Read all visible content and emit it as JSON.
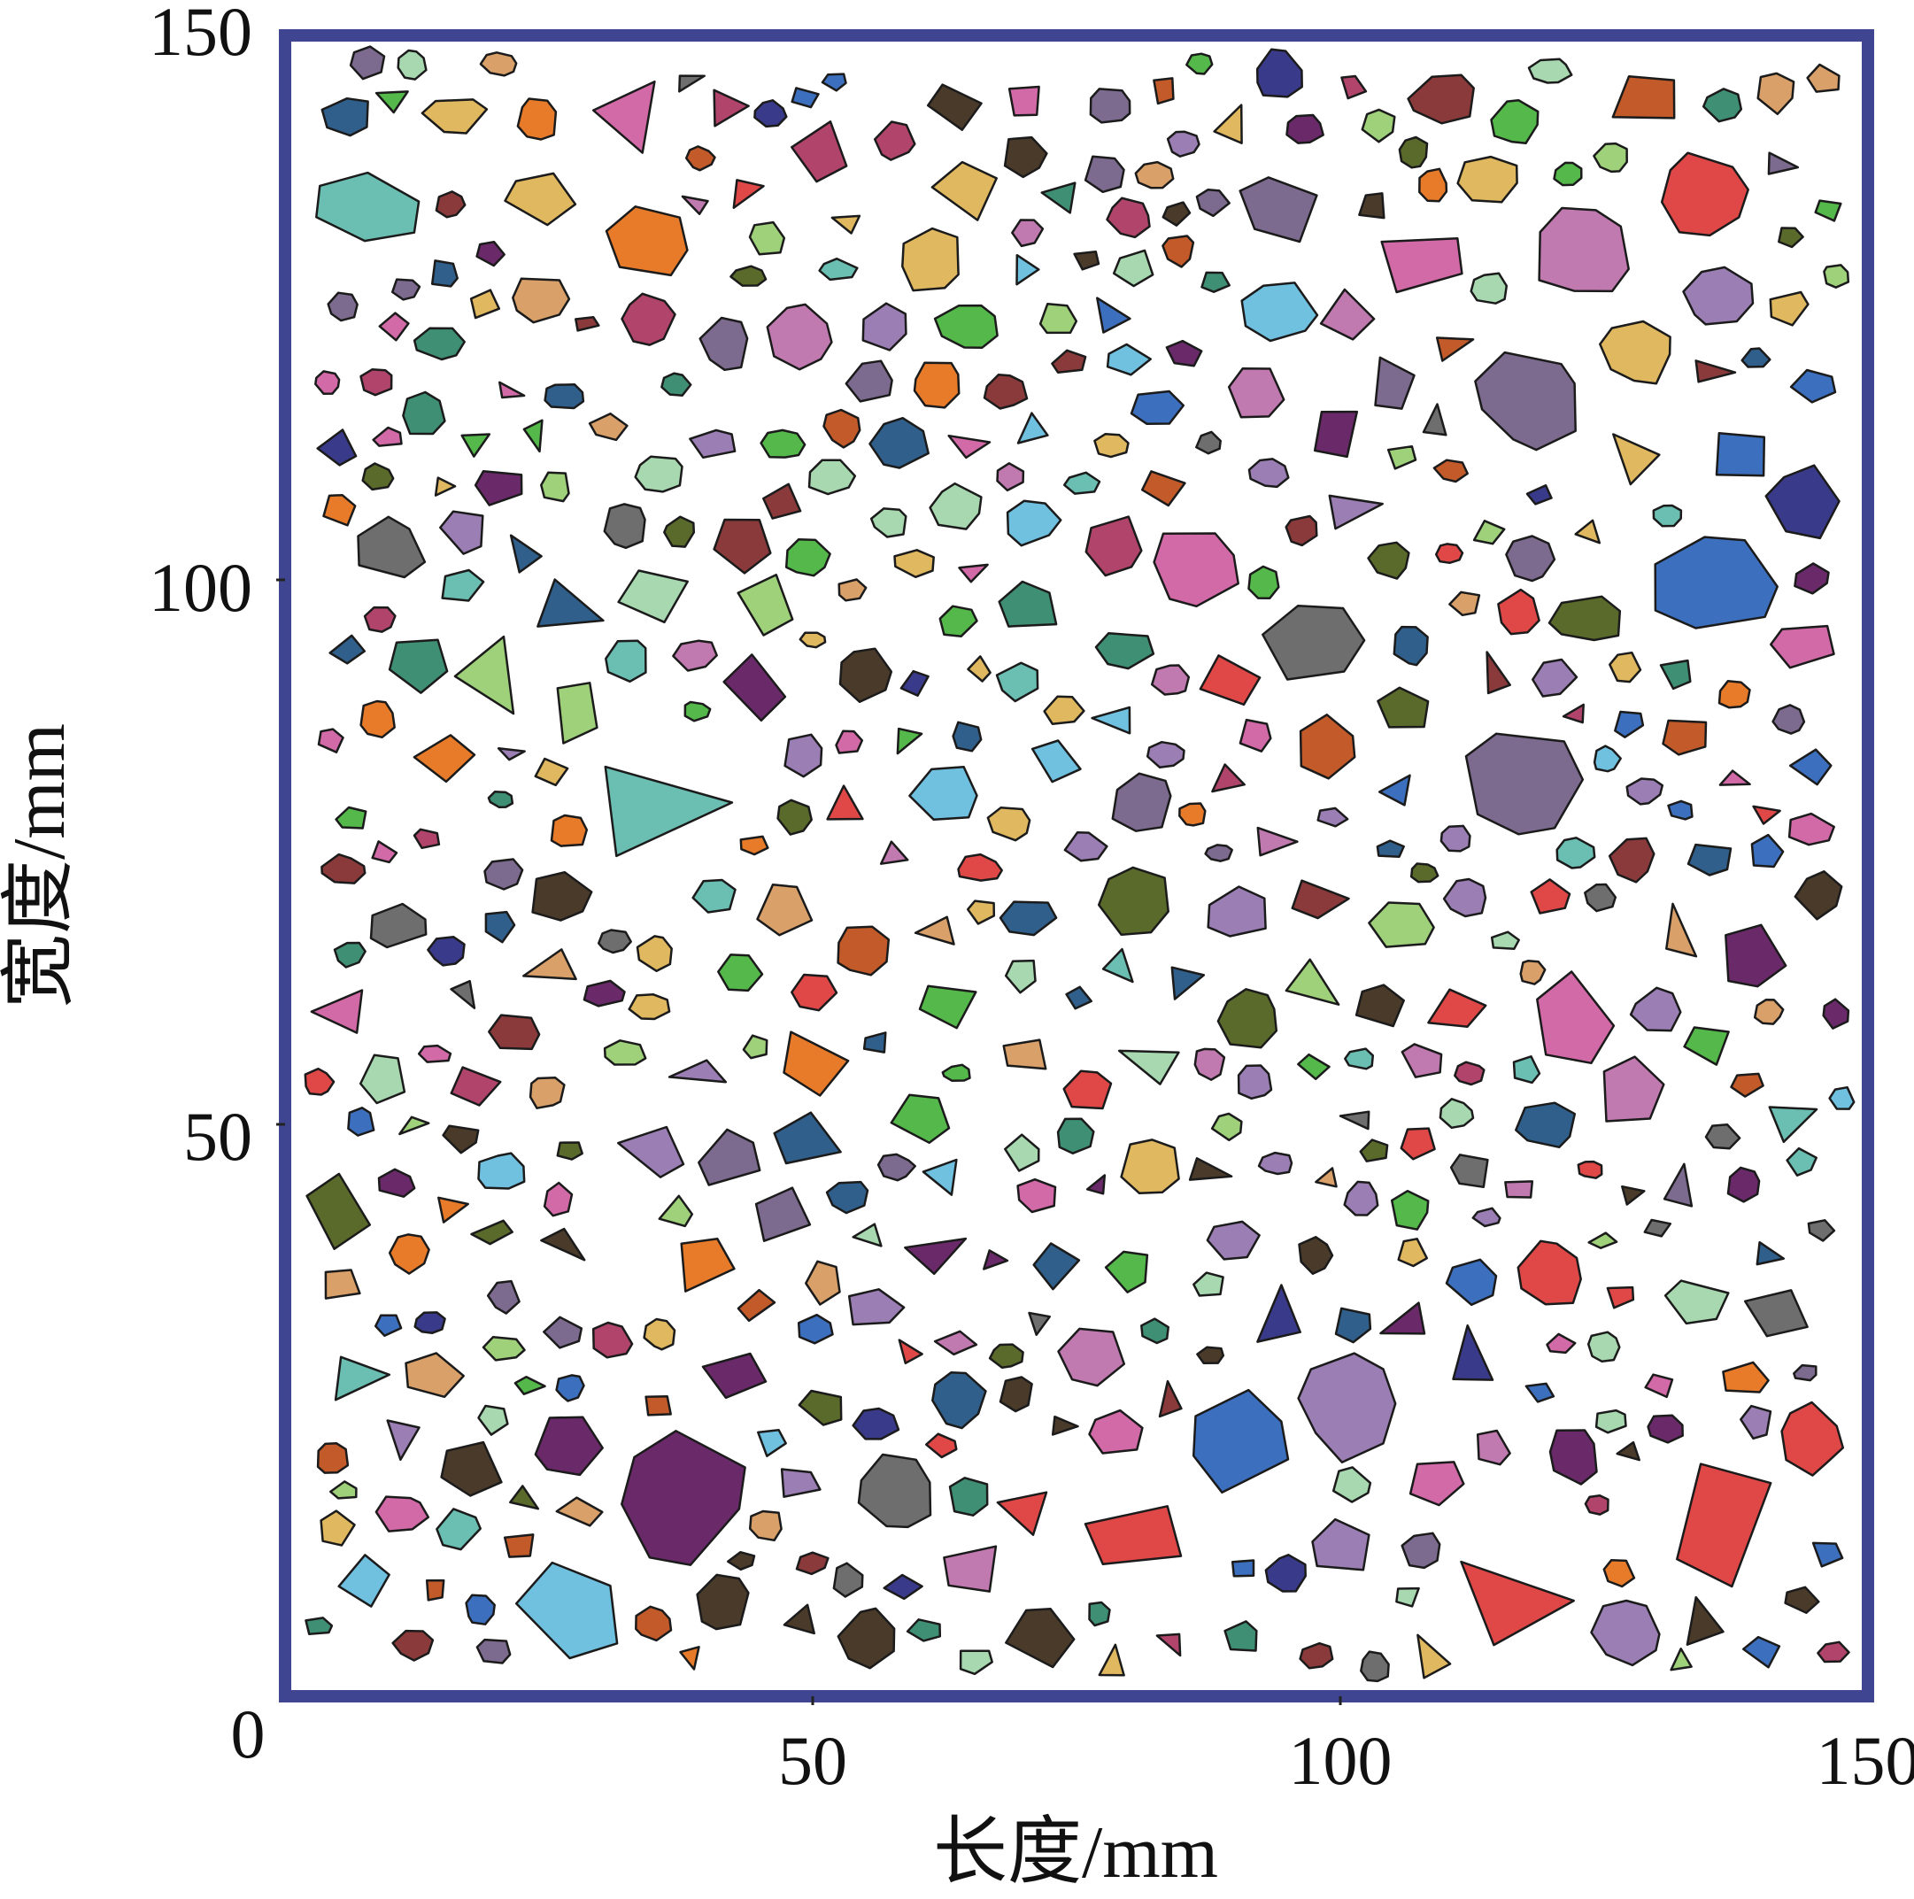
{
  "figure": {
    "x_axis": {
      "label": "长度/mm",
      "range": [
        0,
        150
      ],
      "ticks": [
        "0",
        "50",
        "100",
        "150"
      ]
    },
    "y_axis": {
      "label": "宽度/mm",
      "range": [
        0,
        150
      ],
      "ticks": [
        "0",
        "50",
        "100",
        "150"
      ]
    },
    "frame_color": "#3f4590",
    "aggregate_stroke_color": "#1b1b1b",
    "aggregate_palette": [
      "#b0446a",
      "#6a2a6a",
      "#54b84a",
      "#3c6fbe",
      "#7d6b8f",
      "#d9a06a",
      "#3f8f75",
      "#c25a2a",
      "#6bbfb2",
      "#9b7fb4",
      "#e87b2a",
      "#4a3a2a",
      "#9fd07a",
      "#d36aa8",
      "#2f5f8a",
      "#e0b860",
      "#8a3a3a",
      "#70c0e0",
      "#5a6a2a",
      "#c07ab0",
      "#3a3a8a",
      "#a8d8b0",
      "#e04848",
      "#6e6e6e"
    ],
    "aggregate_count_approx": 520
  }
}
